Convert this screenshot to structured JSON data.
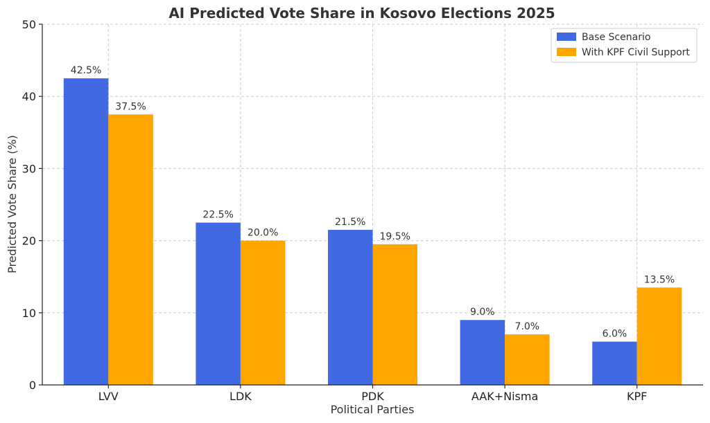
{
  "chart_data": {
    "type": "bar",
    "title": "AI Predicted Vote Share in Kosovo Elections 2025",
    "xlabel": "Political Parties",
    "ylabel": "Predicted Vote Share (%)",
    "categories": [
      "LVV",
      "LDK",
      "PDK",
      "AAK+Nisma",
      "KPF"
    ],
    "ylim": [
      0,
      50
    ],
    "yticks": [
      0,
      10,
      20,
      30,
      40,
      50
    ],
    "grid": true,
    "legend_position": "top-right",
    "series": [
      {
        "name": "Base Scenario",
        "color": "#4169E1",
        "values": [
          42.5,
          22.5,
          21.5,
          9.0,
          6.0
        ],
        "labels": [
          "42.5%",
          "22.5%",
          "21.5%",
          "9.0%",
          "6.0%"
        ]
      },
      {
        "name": "With KPF Civil Support",
        "color": "#FFA500",
        "values": [
          37.5,
          20.0,
          19.5,
          7.0,
          13.5
        ],
        "labels": [
          "37.5%",
          "20.0%",
          "19.5%",
          "7.0%",
          "13.5%"
        ]
      }
    ]
  }
}
